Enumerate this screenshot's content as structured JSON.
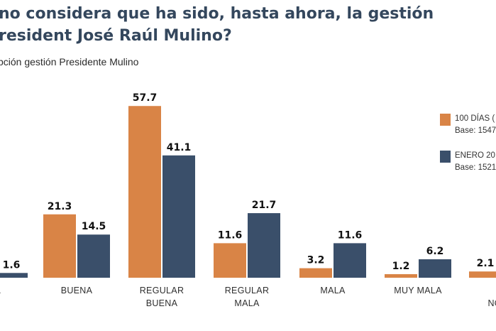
{
  "title": {
    "line1": "no considera que ha sido, hasta ahora, la gestión",
    "line2": "resident José Raúl Mulino?"
  },
  "subtitle": "pción gestión Presidente Mulino",
  "chart_data": {
    "type": "bar",
    "title": "no considera que ha sido, hasta ahora, la gestión resident José Raúl Mulino?",
    "subtitle": "pción gestión Presidente Mulino",
    "categories": [
      [
        "NA"
      ],
      [
        "BUENA"
      ],
      [
        "REGULAR",
        "BUENA"
      ],
      [
        "REGULAR",
        "MALA"
      ],
      [
        "MALA"
      ],
      [
        "MUY MALA"
      ],
      [
        "NO",
        "NO RE"
      ]
    ],
    "series": [
      {
        "name": "100 DÍAS (",
        "base": "Base: 1547",
        "color": "#d98446",
        "values": [
          null,
          21.3,
          57.7,
          11.6,
          3.2,
          1.2,
          2.1
        ]
      },
      {
        "name": "ENERO 20",
        "base": "Base: 1521",
        "color": "#3a4f6a",
        "values": [
          1.6,
          14.5,
          41.1,
          21.7,
          11.6,
          6.2,
          null
        ]
      }
    ],
    "value_labels": [
      [
        null,
        "21.3",
        "57.7",
        "11.6",
        "3.2",
        "1.2",
        "2.1"
      ],
      [
        "1.6",
        "14.5",
        "41.1",
        "21.7",
        "11.6",
        "6.2",
        null
      ]
    ],
    "ylim": [
      0,
      60
    ],
    "grid": false,
    "legend": "right",
    "xlabel": "",
    "ylabel": ""
  }
}
